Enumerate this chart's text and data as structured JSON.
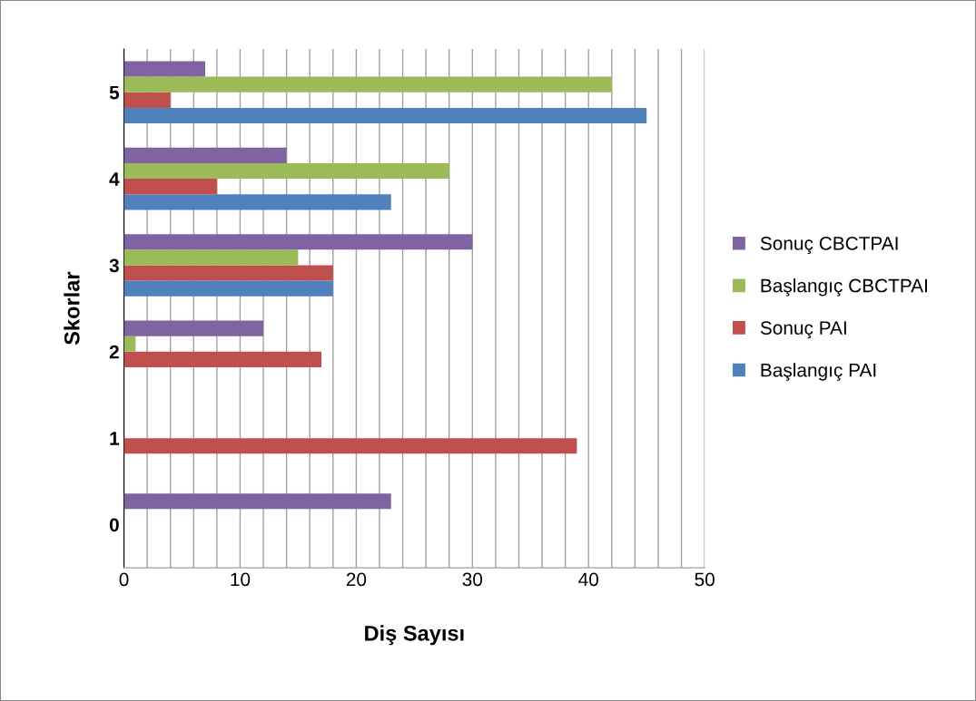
{
  "chart_data": {
    "type": "bar",
    "orientation": "horizontal",
    "xlabel": "Diş Sayısı",
    "ylabel": "Skorlar",
    "categories": [
      "5",
      "4",
      "3",
      "2",
      "1",
      "0"
    ],
    "series": [
      {
        "name": "Başlangıç PAI",
        "color": "#4f81bd",
        "values": [
          45,
          23,
          18,
          null,
          null,
          null
        ]
      },
      {
        "name": "Sonuç PAI",
        "color": "#c0504d",
        "values": [
          4,
          8,
          18,
          17,
          39,
          null
        ]
      },
      {
        "name": "Başlangıç CBCTPAI",
        "color": "#9bbb59",
        "values": [
          42,
          28,
          15,
          1,
          null,
          null
        ]
      },
      {
        "name": "Sonuç CBCTPAI",
        "color": "#8064a2",
        "values": [
          7,
          14,
          30,
          12,
          null,
          23
        ]
      }
    ],
    "xlim": [
      0,
      50
    ],
    "xticks": [
      0,
      {
        "value": 2,
        "label": null
      },
      {
        "value": 4,
        "label": null
      },
      {
        "value": 6,
        "label": null
      },
      {
        "value": 8,
        "label": null
      },
      10,
      {
        "value": 12,
        "label": null
      },
      {
        "value": 14,
        "label": null
      },
      {
        "value": 16,
        "label": null
      },
      {
        "value": 18,
        "label": null
      },
      20,
      {
        "value": 22,
        "label": null
      },
      {
        "value": 24,
        "label": null
      },
      {
        "value": 26,
        "label": null
      },
      {
        "value": 28,
        "label": null
      },
      30,
      {
        "value": 32,
        "label": null
      },
      {
        "value": 34,
        "label": null
      },
      {
        "value": 36,
        "label": null
      },
      {
        "value": 38,
        "label": null
      },
      40,
      {
        "value": 42,
        "label": null
      },
      {
        "value": 44,
        "label": null
      },
      {
        "value": 46,
        "label": null
      },
      {
        "value": 48,
        "label": null
      },
      50
    ],
    "grid": "x",
    "legend": "right"
  }
}
